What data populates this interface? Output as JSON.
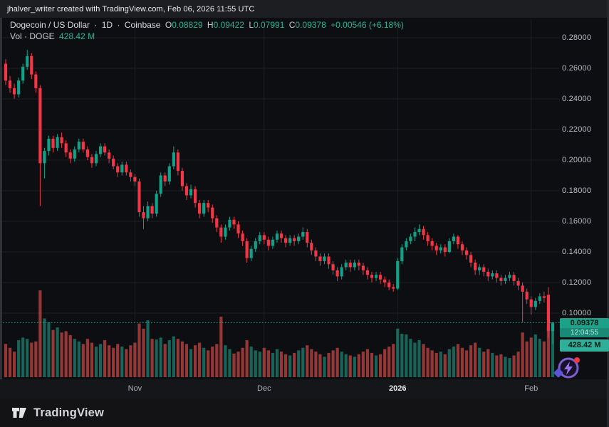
{
  "frame": {
    "attribution": "jhalver_writer created with TradingView.com, Feb 06, 2026 11:55 UTC",
    "logo_text": "TradingView"
  },
  "legend": {
    "title": "Dogecoin / US Dollar",
    "separator": "·",
    "interval": "1D",
    "exchange": "Coinbase",
    "o_label": "O",
    "o_value": "0.08829",
    "h_label": "H",
    "h_value": "0.09422",
    "l_label": "L",
    "l_value": "0.07991",
    "c_label": "C",
    "c_value": "0.09378",
    "change": "+0.00546 (+6.18%)",
    "vol_label": "Vol · DOGE",
    "vol_value": "428.42 M"
  },
  "price_axis": {
    "last_price_label": "0.09378",
    "countdown": "12:04:55",
    "volume_label": "428.42 M"
  },
  "colors": {
    "up": "#12a188",
    "down": "#f23645",
    "vol_up": "rgba(34,171,148,0.55)",
    "vol_down": "rgba(239,83,80,0.6)",
    "grid": "#1a1e24",
    "price_line": "#2aa893",
    "accent_green": "#22b899"
  },
  "chart_data": {
    "type": "candlestick",
    "symbol": "Dogecoin / US Dollar",
    "interval": "1D",
    "exchange": "Coinbase",
    "date_range": "Oct 2025 - Feb 06 2026",
    "last": {
      "open": 0.08829,
      "high": 0.09422,
      "low": 0.07991,
      "close": 0.09378,
      "change": 0.00546,
      "change_pct": 6.18,
      "volume": "428.42 M",
      "countdown": "12:04:55"
    },
    "ylim": [
      0.058,
      0.293
    ],
    "y_ticks": [
      0.28,
      0.26,
      0.24,
      0.22,
      0.2,
      0.18,
      0.16,
      0.14,
      0.12,
      0.1
    ],
    "x_ticks": [
      {
        "label": "Nov",
        "index": 30,
        "bold": false
      },
      {
        "label": "Dec",
        "index": 60,
        "bold": false
      },
      {
        "label": "2026",
        "index": 91,
        "bold": true
      },
      {
        "label": "Feb",
        "index": 122,
        "bold": false
      }
    ],
    "volume_max_m": 680,
    "candles": [
      [
        0.263,
        0.266,
        0.249,
        0.252,
        260
      ],
      [
        0.252,
        0.255,
        0.244,
        0.247,
        230
      ],
      [
        0.247,
        0.25,
        0.24,
        0.243,
        200
      ],
      [
        0.243,
        0.254,
        0.241,
        0.252,
        290
      ],
      [
        0.252,
        0.263,
        0.25,
        0.261,
        310
      ],
      [
        0.261,
        0.272,
        0.259,
        0.268,
        300
      ],
      [
        0.268,
        0.27,
        0.253,
        0.256,
        270
      ],
      [
        0.256,
        0.258,
        0.244,
        0.247,
        280
      ],
      [
        0.247,
        0.249,
        0.17,
        0.198,
        680
      ],
      [
        0.198,
        0.208,
        0.188,
        0.206,
        460
      ],
      [
        0.206,
        0.216,
        0.203,
        0.214,
        430
      ],
      [
        0.214,
        0.216,
        0.205,
        0.208,
        370
      ],
      [
        0.208,
        0.217,
        0.206,
        0.215,
        390
      ],
      [
        0.215,
        0.218,
        0.208,
        0.211,
        350
      ],
      [
        0.211,
        0.213,
        0.202,
        0.205,
        360
      ],
      [
        0.205,
        0.207,
        0.198,
        0.201,
        330
      ],
      [
        0.201,
        0.209,
        0.199,
        0.207,
        300
      ],
      [
        0.207,
        0.214,
        0.205,
        0.212,
        280
      ],
      [
        0.212,
        0.214,
        0.205,
        0.207,
        260
      ],
      [
        0.207,
        0.209,
        0.2,
        0.202,
        300
      ],
      [
        0.202,
        0.204,
        0.195,
        0.198,
        270
      ],
      [
        0.198,
        0.206,
        0.196,
        0.204,
        240
      ],
      [
        0.204,
        0.211,
        0.202,
        0.209,
        260
      ],
      [
        0.209,
        0.211,
        0.203,
        0.205,
        290
      ],
      [
        0.205,
        0.207,
        0.198,
        0.201,
        250
      ],
      [
        0.201,
        0.203,
        0.194,
        0.196,
        230
      ],
      [
        0.196,
        0.198,
        0.189,
        0.192,
        260
      ],
      [
        0.192,
        0.199,
        0.19,
        0.197,
        240
      ],
      [
        0.197,
        0.199,
        0.19,
        0.192,
        220
      ],
      [
        0.192,
        0.194,
        0.186,
        0.189,
        250
      ],
      [
        0.189,
        0.191,
        0.183,
        0.186,
        270
      ],
      [
        0.186,
        0.188,
        0.163,
        0.166,
        420
      ],
      [
        0.166,
        0.17,
        0.155,
        0.162,
        380
      ],
      [
        0.162,
        0.173,
        0.16,
        0.17,
        445
      ],
      [
        0.17,
        0.172,
        0.162,
        0.165,
        300
      ],
      [
        0.165,
        0.18,
        0.163,
        0.178,
        295
      ],
      [
        0.178,
        0.192,
        0.176,
        0.19,
        310
      ],
      [
        0.19,
        0.192,
        0.183,
        0.186,
        260
      ],
      [
        0.186,
        0.198,
        0.184,
        0.196,
        290
      ],
      [
        0.196,
        0.209,
        0.194,
        0.205,
        320
      ],
      [
        0.205,
        0.207,
        0.19,
        0.193,
        300
      ],
      [
        0.193,
        0.195,
        0.18,
        0.183,
        280
      ],
      [
        0.183,
        0.185,
        0.174,
        0.177,
        260
      ],
      [
        0.177,
        0.184,
        0.175,
        0.181,
        220
      ],
      [
        0.181,
        0.183,
        0.169,
        0.172,
        250
      ],
      [
        0.172,
        0.174,
        0.162,
        0.165,
        270
      ],
      [
        0.165,
        0.174,
        0.163,
        0.172,
        230
      ],
      [
        0.172,
        0.174,
        0.166,
        0.169,
        210
      ],
      [
        0.169,
        0.171,
        0.159,
        0.162,
        240
      ],
      [
        0.162,
        0.164,
        0.153,
        0.156,
        260
      ],
      [
        0.156,
        0.158,
        0.146,
        0.15,
        474
      ],
      [
        0.15,
        0.158,
        0.148,
        0.156,
        250
      ],
      [
        0.156,
        0.163,
        0.154,
        0.161,
        220
      ],
      [
        0.161,
        0.163,
        0.155,
        0.158,
        185
      ],
      [
        0.158,
        0.16,
        0.149,
        0.152,
        200
      ],
      [
        0.152,
        0.154,
        0.144,
        0.147,
        230
      ],
      [
        0.147,
        0.149,
        0.133,
        0.136,
        290
      ],
      [
        0.136,
        0.144,
        0.134,
        0.142,
        240
      ],
      [
        0.142,
        0.149,
        0.14,
        0.147,
        210
      ],
      [
        0.147,
        0.153,
        0.145,
        0.151,
        200
      ],
      [
        0.151,
        0.153,
        0.145,
        0.148,
        230
      ],
      [
        0.148,
        0.15,
        0.141,
        0.144,
        210
      ],
      [
        0.144,
        0.15,
        0.142,
        0.148,
        190
      ],
      [
        0.148,
        0.154,
        0.146,
        0.152,
        220
      ],
      [
        0.152,
        0.154,
        0.146,
        0.149,
        200
      ],
      [
        0.149,
        0.151,
        0.143,
        0.146,
        180
      ],
      [
        0.146,
        0.151,
        0.144,
        0.149,
        170
      ],
      [
        0.149,
        0.151,
        0.144,
        0.147,
        190
      ],
      [
        0.147,
        0.152,
        0.145,
        0.15,
        210
      ],
      [
        0.15,
        0.156,
        0.148,
        0.153,
        230
      ],
      [
        0.153,
        0.155,
        0.143,
        0.146,
        250
      ],
      [
        0.146,
        0.148,
        0.138,
        0.141,
        220
      ],
      [
        0.141,
        0.143,
        0.134,
        0.137,
        200
      ],
      [
        0.137,
        0.139,
        0.131,
        0.134,
        180
      ],
      [
        0.134,
        0.139,
        0.132,
        0.137,
        160
      ],
      [
        0.137,
        0.139,
        0.129,
        0.132,
        190
      ],
      [
        0.132,
        0.134,
        0.125,
        0.128,
        210
      ],
      [
        0.128,
        0.13,
        0.121,
        0.124,
        230
      ],
      [
        0.124,
        0.132,
        0.122,
        0.13,
        200
      ],
      [
        0.13,
        0.135,
        0.128,
        0.133,
        180
      ],
      [
        0.133,
        0.135,
        0.127,
        0.13,
        170
      ],
      [
        0.13,
        0.135,
        0.128,
        0.133,
        160
      ],
      [
        0.133,
        0.135,
        0.128,
        0.131,
        180
      ],
      [
        0.131,
        0.133,
        0.125,
        0.128,
        200
      ],
      [
        0.128,
        0.13,
        0.122,
        0.125,
        220
      ],
      [
        0.125,
        0.127,
        0.12,
        0.123,
        190
      ],
      [
        0.123,
        0.127,
        0.121,
        0.125,
        170
      ],
      [
        0.125,
        0.127,
        0.119,
        0.122,
        180
      ],
      [
        0.122,
        0.124,
        0.117,
        0.12,
        220
      ],
      [
        0.12,
        0.122,
        0.115,
        0.117,
        240
      ],
      [
        0.117,
        0.119,
        0.114,
        0.116,
        260
      ],
      [
        0.116,
        0.136,
        0.115,
        0.134,
        380
      ],
      [
        0.134,
        0.145,
        0.132,
        0.143,
        340
      ],
      [
        0.143,
        0.149,
        0.141,
        0.147,
        335
      ],
      [
        0.147,
        0.152,
        0.145,
        0.15,
        300
      ],
      [
        0.15,
        0.156,
        0.147,
        0.153,
        270
      ],
      [
        0.153,
        0.158,
        0.151,
        0.155,
        290
      ],
      [
        0.155,
        0.157,
        0.148,
        0.151,
        260
      ],
      [
        0.151,
        0.153,
        0.144,
        0.147,
        230
      ],
      [
        0.147,
        0.149,
        0.141,
        0.144,
        210
      ],
      [
        0.144,
        0.146,
        0.138,
        0.141,
        190
      ],
      [
        0.141,
        0.145,
        0.139,
        0.143,
        200
      ],
      [
        0.143,
        0.145,
        0.137,
        0.14,
        180
      ],
      [
        0.14,
        0.149,
        0.139,
        0.147,
        220
      ],
      [
        0.147,
        0.152,
        0.145,
        0.15,
        240
      ],
      [
        0.15,
        0.151,
        0.142,
        0.145,
        260
      ],
      [
        0.145,
        0.147,
        0.138,
        0.141,
        230
      ],
      [
        0.141,
        0.143,
        0.135,
        0.138,
        210
      ],
      [
        0.138,
        0.14,
        0.13,
        0.133,
        250
      ],
      [
        0.133,
        0.135,
        0.125,
        0.128,
        270
      ],
      [
        0.128,
        0.132,
        0.125,
        0.13,
        230
      ],
      [
        0.13,
        0.132,
        0.124,
        0.127,
        200
      ],
      [
        0.127,
        0.129,
        0.121,
        0.124,
        220
      ],
      [
        0.124,
        0.128,
        0.122,
        0.126,
        190
      ],
      [
        0.126,
        0.128,
        0.12,
        0.123,
        170
      ],
      [
        0.123,
        0.125,
        0.118,
        0.121,
        180
      ],
      [
        0.121,
        0.125,
        0.119,
        0.123,
        160
      ],
      [
        0.123,
        0.127,
        0.121,
        0.125,
        150
      ],
      [
        0.125,
        0.127,
        0.118,
        0.121,
        170
      ],
      [
        0.121,
        0.123,
        0.115,
        0.118,
        200
      ],
      [
        0.118,
        0.12,
        0.094,
        0.114,
        350
      ],
      [
        0.114,
        0.116,
        0.106,
        0.109,
        280
      ],
      [
        0.109,
        0.111,
        0.099,
        0.104,
        310
      ],
      [
        0.104,
        0.11,
        0.102,
        0.108,
        335
      ],
      [
        0.108,
        0.113,
        0.106,
        0.111,
        300
      ],
      [
        0.111,
        0.114,
        0.107,
        0.11,
        280
      ],
      [
        0.112,
        0.117,
        0.084,
        0.0883,
        390
      ],
      [
        0.08829,
        0.09422,
        0.07991,
        0.09378,
        428.42
      ]
    ]
  }
}
